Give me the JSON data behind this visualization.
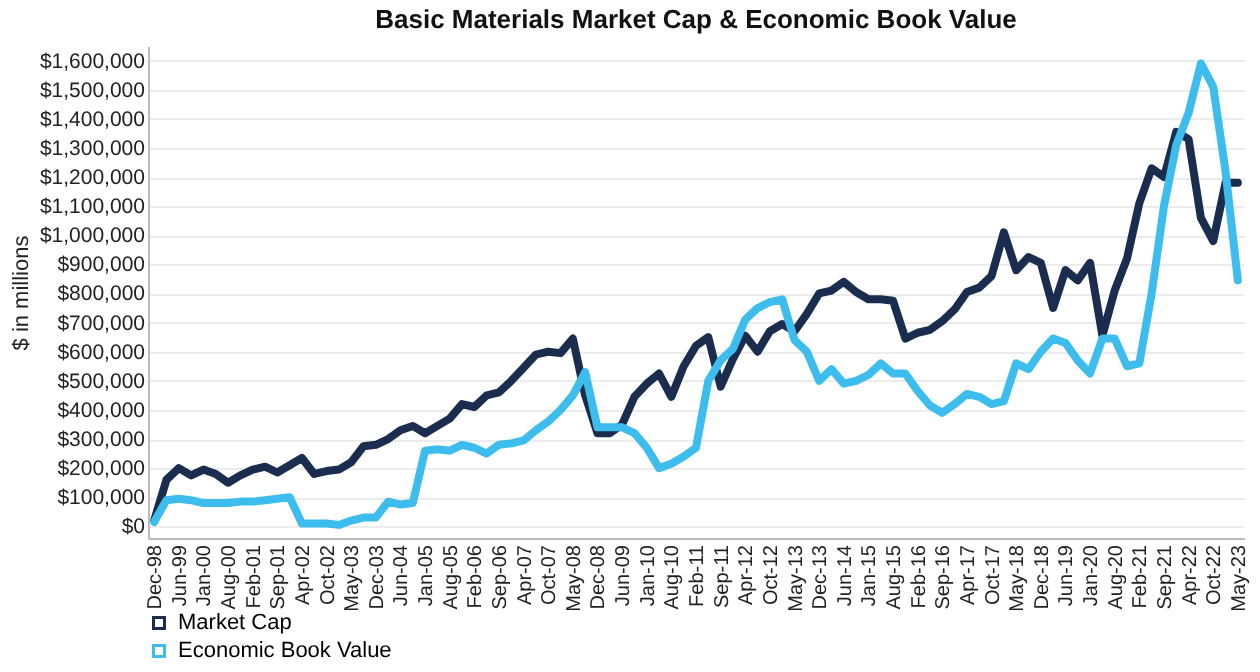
{
  "chart_data": {
    "type": "line",
    "title": "Basic Materials Market Cap & Economic Book Value",
    "ylabel": "$ in millions",
    "categories": [
      "Dec-98",
      null,
      "Jun-99",
      null,
      "Jan-00",
      null,
      "Aug-00",
      null,
      "Feb-01",
      null,
      "Sep-01",
      null,
      "Apr-02",
      null,
      "Oct-02",
      null,
      "May-03",
      null,
      "Dec-03",
      null,
      "Jun-04",
      null,
      "Jan-05",
      null,
      "Aug-05",
      null,
      "Feb-06",
      null,
      "Sep-06",
      null,
      "Apr-07",
      null,
      "Oct-07",
      null,
      "May-08",
      null,
      "Dec-08",
      null,
      "Jun-09",
      null,
      "Jan-10",
      null,
      "Aug-10",
      null,
      "Feb-11",
      null,
      "Sep-11",
      null,
      "Apr-12",
      null,
      "Oct-12",
      null,
      "May-13",
      null,
      "Dec-13",
      null,
      "Jun-14",
      null,
      "Jan-15",
      null,
      "Aug-15",
      null,
      "Feb-16",
      null,
      "Sep-16",
      null,
      "Apr-17",
      null,
      "Oct-17",
      null,
      "May-18",
      null,
      "Dec-18",
      null,
      "Jun-19",
      null,
      "Jan-20",
      null,
      "Aug-20",
      null,
      "Feb-21",
      null,
      "Sep-21",
      null,
      "Apr-22",
      null,
      "Oct-22",
      null,
      "May-23"
    ],
    "series": [
      {
        "name": "Market Cap",
        "color": "#1b2d4f",
        "values": [
          20000,
          160000,
          200000,
          175000,
          195000,
          180000,
          150000,
          175000,
          195000,
          205000,
          185000,
          210000,
          235000,
          180000,
          190000,
          195000,
          220000,
          275000,
          280000,
          300000,
          330000,
          345000,
          320000,
          345000,
          370000,
          420000,
          410000,
          450000,
          460000,
          500000,
          545000,
          590000,
          600000,
          595000,
          645000,
          450000,
          320000,
          320000,
          350000,
          445000,
          490000,
          525000,
          445000,
          550000,
          620000,
          650000,
          480000,
          575000,
          655000,
          600000,
          670000,
          695000,
          670000,
          730000,
          800000,
          810000,
          840000,
          805000,
          780000,
          780000,
          775000,
          645000,
          665000,
          675000,
          705000,
          745000,
          805000,
          820000,
          860000,
          1010000,
          880000,
          925000,
          905000,
          750000,
          880000,
          845000,
          905000,
          655000,
          810000,
          920000,
          1110000,
          1230000,
          1200000,
          1355000,
          1330000,
          1060000,
          980000,
          1180000,
          1180000
        ]
      },
      {
        "name": "Economic Book Value",
        "color": "#3cbdee",
        "values": [
          15000,
          90000,
          95000,
          90000,
          80000,
          80000,
          80000,
          85000,
          85000,
          90000,
          95000,
          100000,
          10000,
          10000,
          10000,
          5000,
          20000,
          30000,
          30000,
          85000,
          75000,
          80000,
          260000,
          265000,
          260000,
          280000,
          270000,
          250000,
          280000,
          285000,
          295000,
          330000,
          360000,
          400000,
          450000,
          530000,
          340000,
          340000,
          340000,
          320000,
          270000,
          200000,
          215000,
          240000,
          270000,
          500000,
          570000,
          610000,
          710000,
          750000,
          770000,
          780000,
          640000,
          600000,
          500000,
          540000,
          490000,
          500000,
          520000,
          560000,
          525000,
          525000,
          465000,
          415000,
          390000,
          420000,
          455000,
          445000,
          420000,
          430000,
          560000,
          540000,
          600000,
          645000,
          630000,
          570000,
          525000,
          645000,
          645000,
          550000,
          560000,
          800000,
          1100000,
          1310000,
          1420000,
          1590000,
          1510000,
          1220000,
          845000
        ]
      }
    ],
    "ylim": [
      -40000,
      1650000
    ],
    "yticks": [
      {
        "value": 0,
        "label": "$0"
      },
      {
        "value": 100000,
        "label": "$100,000"
      },
      {
        "value": 200000,
        "label": "$200,000"
      },
      {
        "value": 300000,
        "label": "$300,000"
      },
      {
        "value": 400000,
        "label": "$400,000"
      },
      {
        "value": 500000,
        "label": "$500,000"
      },
      {
        "value": 600000,
        "label": "$600,000"
      },
      {
        "value": 700000,
        "label": "$700,000"
      },
      {
        "value": 800000,
        "label": "$800,000"
      },
      {
        "value": 900000,
        "label": "$900,000"
      },
      {
        "value": 1000000,
        "label": "$1,000,000"
      },
      {
        "value": 1100000,
        "label": "$1,100,000"
      },
      {
        "value": 1200000,
        "label": "$1,200,000"
      },
      {
        "value": 1300000,
        "label": "$1,300,000"
      },
      {
        "value": 1400000,
        "label": "$1,400,000"
      },
      {
        "value": 1500000,
        "label": "$1,500,000"
      },
      {
        "value": 1600000,
        "label": "$1,600,000"
      }
    ],
    "grid": "y",
    "legend": "bottom left",
    "marker": "none",
    "line_style": "solid"
  }
}
